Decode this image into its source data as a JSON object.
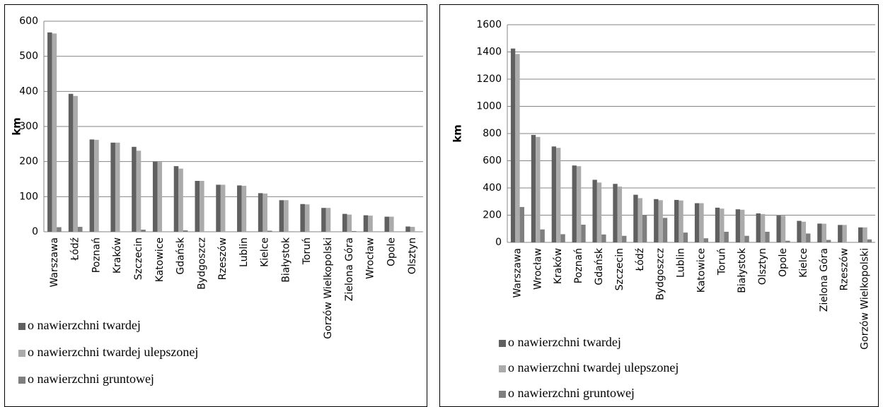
{
  "chart_data": [
    {
      "type": "bar",
      "y_label": "km",
      "categories": [
        "Warszawa",
        "Łódź",
        "Poznań",
        "Kraków",
        "Szczecin",
        "Katowice",
        "Gdańsk",
        "Bydgoszcz",
        "Rzeszów",
        "Lublin",
        "Kielce",
        "Białystok",
        "Toruń",
        "Gorzów Wielkopolski",
        "Zielona Góra",
        "Wrocław",
        "Opole",
        "Olsztyn"
      ],
      "series": [
        {
          "name": "o nawierzchni twardej",
          "color": "#606060",
          "values": [
            568,
            393,
            263,
            254,
            242,
            200,
            187,
            145,
            134,
            132,
            110,
            90,
            79,
            68,
            51,
            47,
            43,
            15
          ]
        },
        {
          "name": "o nawierzchni twardej ulepszonej",
          "color": "#ababab",
          "values": [
            565,
            387,
            262,
            254,
            231,
            199,
            180,
            145,
            134,
            131,
            109,
            90,
            78,
            68,
            49,
            46,
            43,
            14
          ]
        },
        {
          "name": "o nawierzchni gruntowej",
          "color": "#7f7f7f",
          "values": [
            13,
            14,
            1,
            0,
            6,
            1,
            4,
            1,
            0,
            1,
            3,
            1,
            1,
            0,
            2,
            1,
            0,
            1
          ]
        }
      ],
      "ylim": [
        0,
        600
      ],
      "yticks": [
        0,
        100,
        200,
        300,
        400,
        500,
        600
      ],
      "grid": true
    },
    {
      "type": "bar",
      "y_label": "km",
      "categories": [
        "Warszawa",
        "Wrocław",
        "Kraków",
        "Poznań",
        "Gdańsk",
        "Szczecin",
        "Łódź",
        "Bydgoszcz",
        "Lublin",
        "Katowice",
        "Toruń",
        "Białystok",
        "Olsztyn",
        "Opole",
        "Kielce",
        "Zielona Góra",
        "Rzeszów",
        "Gorzów Wielkopolski"
      ],
      "series": [
        {
          "name": "o nawierzchni twardej",
          "color": "#606060",
          "values": [
            1425,
            790,
            705,
            565,
            460,
            430,
            350,
            318,
            312,
            288,
            255,
            243,
            213,
            197,
            158,
            138,
            128,
            110
          ]
        },
        {
          "name": "o nawierzchni twardej ulepszonej",
          "color": "#ababab",
          "values": [
            1385,
            775,
            695,
            560,
            440,
            410,
            325,
            310,
            308,
            288,
            248,
            240,
            208,
            196,
            152,
            137,
            128,
            110
          ]
        },
        {
          "name": "o nawierzchni gruntowej",
          "color": "#7f7f7f",
          "values": [
            260,
            95,
            60,
            130,
            58,
            48,
            200,
            180,
            72,
            30,
            78,
            48,
            78,
            12,
            65,
            18,
            0,
            22
          ]
        }
      ],
      "ylim": [
        0,
        1600
      ],
      "yticks": [
        0,
        200,
        400,
        600,
        800,
        1000,
        1200,
        1400,
        1600
      ],
      "grid": true
    }
  ]
}
